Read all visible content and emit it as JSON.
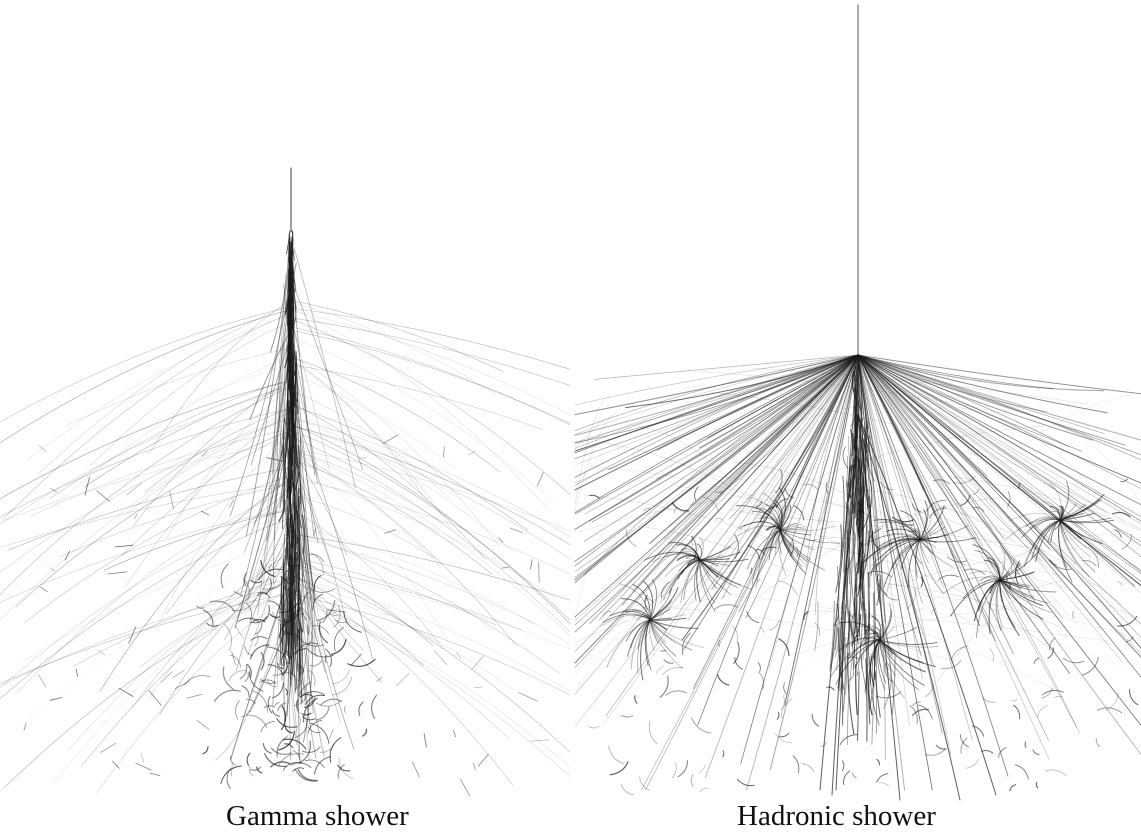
{
  "panels": [
    {
      "caption": "Gamma shower"
    },
    {
      "caption": "Hadronic shower"
    }
  ],
  "colors": {
    "background": "#ffffff",
    "track": "#1a1a1a"
  }
}
